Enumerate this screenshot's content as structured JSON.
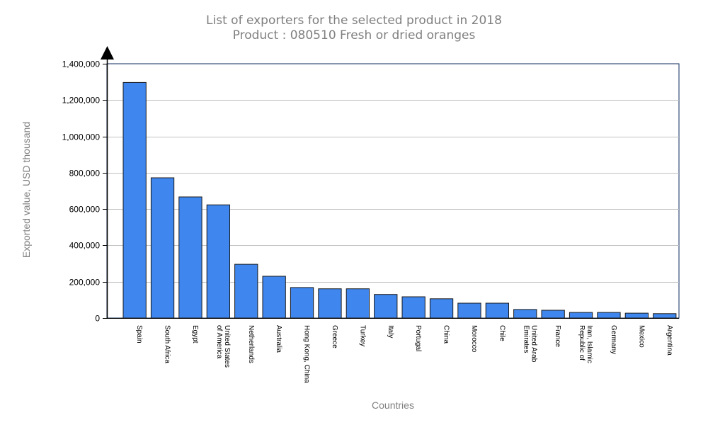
{
  "chart_data": {
    "type": "bar",
    "title": "List of exporters for the selected product in 2018",
    "subtitle": "Product : 080510 Fresh or dried oranges",
    "xlabel": "Countries",
    "ylabel": "Exported value, USD thousand",
    "ylim": [
      0,
      1400000
    ],
    "yticks": [
      0,
      200000,
      400000,
      600000,
      800000,
      1000000,
      1200000,
      1400000
    ],
    "ytick_labels": [
      "0",
      "200,000",
      "400,000",
      "600,000",
      "800,000",
      "1,000,000",
      "1,200,000",
      "1,400,000"
    ],
    "grid": true,
    "legend": "none",
    "categories": [
      "Spain",
      "South Africa",
      "Egypt",
      "United States of America",
      "Netherlands",
      "Australia",
      "Hong Kong, China",
      "Greece",
      "Turkey",
      "Italy",
      "Portugal",
      "China",
      "Morocco",
      "Chile",
      "United Arab Emirates",
      "France",
      "Iran, Islamic Republic of",
      "Germany",
      "Mexico",
      "Argentina"
    ],
    "category_label_lines": [
      [
        "Spain"
      ],
      [
        "South Africa"
      ],
      [
        "Egypt"
      ],
      [
        "United States",
        "of America"
      ],
      [
        "Netherlands"
      ],
      [
        "Australia"
      ],
      [
        "Hong Kong, China"
      ],
      [
        "Greece"
      ],
      [
        "Turkey"
      ],
      [
        "Italy"
      ],
      [
        "Portugal"
      ],
      [
        "China"
      ],
      [
        "Morocco"
      ],
      [
        "Chile"
      ],
      [
        "United Arab",
        "Emirates"
      ],
      [
        "France"
      ],
      [
        "Iran, Islamic",
        "Republic of"
      ],
      [
        "Germany"
      ],
      [
        "Mexico"
      ],
      [
        "Argentina"
      ]
    ],
    "values": [
      1297000,
      772000,
      667000,
      623000,
      296000,
      230000,
      168000,
      161000,
      161000,
      130000,
      117000,
      106000,
      82000,
      82000,
      47000,
      43000,
      31000,
      31000,
      27000,
      24000
    ],
    "colors": {
      "bar_fill": "#3f87ee",
      "bar_stroke": "#1a1a1a",
      "axis": "#000000",
      "plot_border": "#0c2a5c",
      "grid": "#c0c0c0",
      "title": "#7f7f7f",
      "axis_title": "#808080"
    }
  }
}
